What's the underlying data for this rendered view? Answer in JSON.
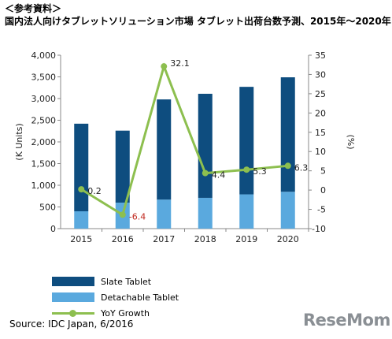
{
  "header": {
    "note": "＜参考資料＞",
    "title": "国内法人向けタブレットソリューション市場 タブレット出荷台数予測、2015年～2020年"
  },
  "chart_data": {
    "type": "bar",
    "stacked": true,
    "categories": [
      "2015",
      "2016",
      "2017",
      "2018",
      "2019",
      "2020"
    ],
    "series": [
      {
        "name": "Slate Tablet",
        "type": "bar",
        "axis": "left",
        "color": "#0e4d7f",
        "values": [
          2020,
          1660,
          2310,
          2400,
          2480,
          2640
        ]
      },
      {
        "name": "Detachable Tablet",
        "type": "bar",
        "axis": "left",
        "color": "#5aa9de",
        "values": [
          400,
          600,
          670,
          710,
          790,
          850
        ]
      },
      {
        "name": "YoY Growth",
        "type": "line",
        "axis": "right",
        "color": "#8dbf4f",
        "values": [
          0.2,
          -6.4,
          32.1,
          4.4,
          5.3,
          6.3
        ]
      }
    ],
    "data_labels": [
      "0.2",
      "-6.4",
      "32.1",
      "4.4",
      "5.3",
      "6.3"
    ],
    "left_axis": {
      "label": "(K Units)",
      "min": 0,
      "max": 4000,
      "ticks": [
        "0",
        "500",
        "1,000",
        "1,500",
        "2,000",
        "2,500",
        "3,000",
        "3,500",
        "4,000"
      ]
    },
    "right_axis": {
      "label": "(%)",
      "min": -10,
      "max": 35,
      "ticks": [
        "-10",
        "-5",
        "0",
        "5",
        "10",
        "15",
        "20",
        "25",
        "30",
        "35"
      ]
    },
    "legend_position": "bottom-left",
    "grid": false
  },
  "footer": {
    "source": "Source: IDC Japan, 6/2016",
    "brand": "ReseMom"
  }
}
